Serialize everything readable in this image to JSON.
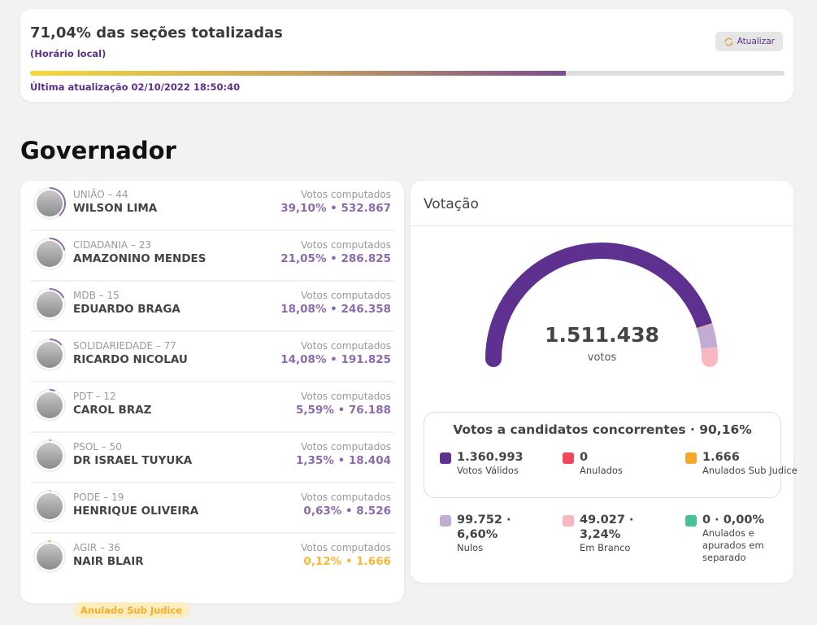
{
  "header": {
    "title": "71,04% das seções totalizadas",
    "subtitle": "(Horário local)",
    "progress_percent": 71.04,
    "last_update": "Última atualização 02/10/2022 18:50:40",
    "refresh_label": "Atualizar",
    "refresh_icon": "refresh-icon"
  },
  "section_title": "Governador",
  "candidates": [
    {
      "party": "UNIÃO – 44",
      "name": "WILSON LIMA",
      "label": "Votos computados",
      "votes": "39,10%  •  532.867",
      "pct": 39.1
    },
    {
      "party": "CIDADANIA – 23",
      "name": "AMAZONINO MENDES",
      "label": "Votos computados",
      "votes": "21,05%  •  286.825",
      "pct": 21.05
    },
    {
      "party": "MDB – 15",
      "name": "EDUARDO BRAGA",
      "label": "Votos computados",
      "votes": "18,08%  •  246.358",
      "pct": 18.08
    },
    {
      "party": "SOLIDARIEDADE – 77",
      "name": "RICARDO NICOLAU",
      "label": "Votos computados",
      "votes": "14,08%  •  191.825",
      "pct": 14.08
    },
    {
      "party": "PDT – 12",
      "name": "CAROL BRAZ",
      "label": "Votos computados",
      "votes": "5,59%  •  76.188",
      "pct": 5.59
    },
    {
      "party": "PSOL – 50",
      "name": "DR ISRAEL TUYUKA",
      "label": "Votos computados",
      "votes": "1,35%  •  18.404",
      "pct": 1.35
    },
    {
      "party": "PODE – 19",
      "name": "HENRIQUE OLIVEIRA",
      "label": "Votos computados",
      "votes": "0,63%  •  8.526",
      "pct": 0.63
    },
    {
      "party": "AGIR – 36",
      "name": "NAIR BLAIR",
      "label": "Votos computados",
      "votes": "0,12%  •  1.666",
      "pct": 0.12,
      "badge": "Anulado Sub Judice"
    }
  ],
  "colors": {
    "accent": "#5b2f8c",
    "valid": "#5e3190",
    "anulados": "#f0475f",
    "sub_judice": "#f7a829",
    "nulos": "#c3acd4",
    "branco": "#f9b7c2",
    "separado": "#46c19a",
    "candidate_value": "#8b6bad",
    "sub_judice_value": "#f6b83a"
  },
  "votacao": {
    "title": "Votação",
    "total": "1.511.438",
    "total_label": "votos",
    "box_title": "Votos a candidatos concorrentes · 90,16%",
    "legend": [
      {
        "value": "1.360.993",
        "label": "Votos Válidos",
        "count": 1360993,
        "color": "#5e3190"
      },
      {
        "value": "0",
        "label": "Anulados",
        "count": 0,
        "color": "#f0475f"
      },
      {
        "value": "1.666",
        "label": "Anulados Sub Judice",
        "count": 1666,
        "color": "#f7a829"
      },
      {
        "value": "99.752 · 6,60%",
        "label": "Nulos",
        "count": 99752,
        "color": "#c3acd4"
      },
      {
        "value": "49.027 · 3,24%",
        "label": "Em Branco",
        "count": 49027,
        "color": "#f9b7c2"
      },
      {
        "value": "0 · 0,00%",
        "label": "Anulados e apurados em separado",
        "count": 0,
        "color": "#46c19a"
      }
    ]
  }
}
